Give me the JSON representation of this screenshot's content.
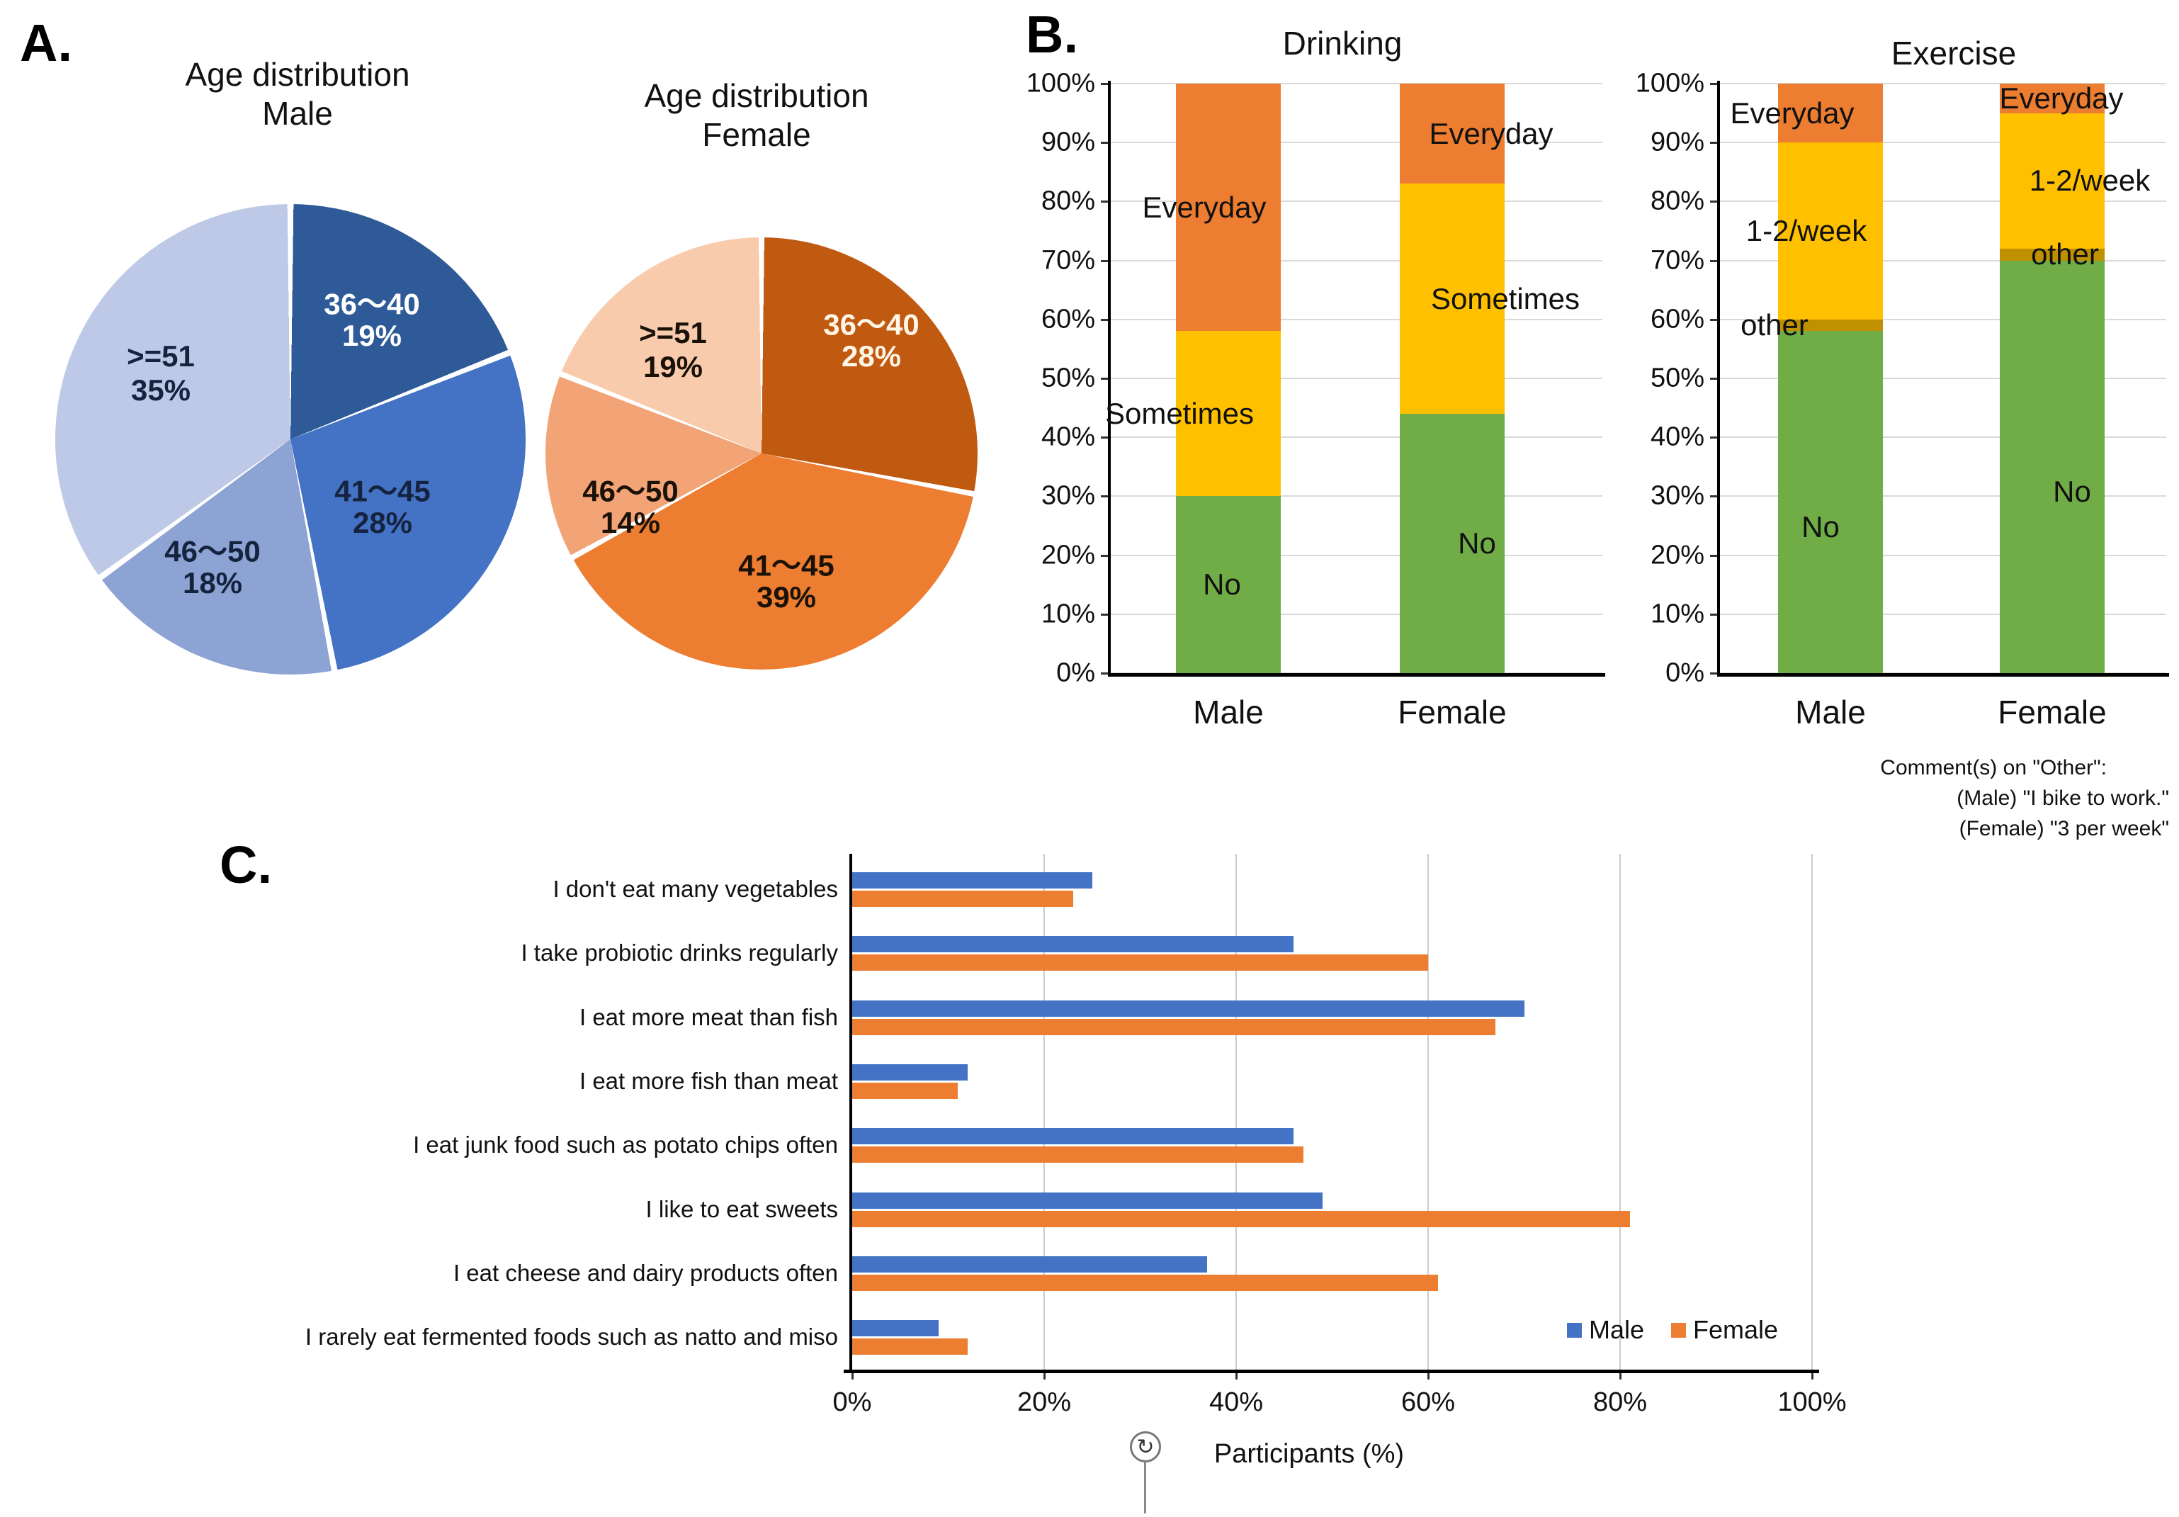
{
  "panels": {
    "a_label": "A.",
    "b_label": "B.",
    "c_label": "C."
  },
  "accent_colors": {
    "male_series_blue": "#4472C4",
    "female_series_orange": "#ED7D31",
    "green_no": "#70AD47",
    "yellow_sometimes": "#FFC000",
    "olive_other": "#BF9000",
    "orange_everyday": "#ED7D31"
  },
  "chart_data": [
    {
      "id": "age_male",
      "type": "pie",
      "title": "Age distribution Male",
      "title_line1": "Age distribution",
      "title_line2": "Male",
      "labels": [
        "36〜40",
        "41〜45",
        "46〜50",
        ">=51"
      ],
      "values": [
        19,
        28,
        18,
        35
      ],
      "pct_labels": [
        "19%",
        "28%",
        "18%",
        "35%"
      ],
      "colors": [
        "#2E5A97",
        "#4472C4",
        "#8DA3D3",
        "#BDC9E6"
      ],
      "text_colors": [
        "#FFFFFF",
        "#15233F",
        "#15233F",
        "#15233F"
      ],
      "start_angle": "top",
      "direction": "clockwise"
    },
    {
      "id": "age_female",
      "type": "pie",
      "title": "Age distribution Female",
      "title_line1": "Age distribution",
      "title_line2": "Female",
      "labels": [
        "36〜40",
        "41〜45",
        "46〜50",
        ">=51"
      ],
      "values": [
        28,
        39,
        14,
        19
      ],
      "pct_labels": [
        "28%",
        "39%",
        "14%",
        "19%"
      ],
      "colors": [
        "#C05A11",
        "#ED7D31",
        "#F2A477",
        "#F8CBAD"
      ],
      "text_colors": [
        "#FFF6E8",
        "#1A1208",
        "#1A1208",
        "#1A1208"
      ],
      "start_angle": "top",
      "direction": "clockwise"
    },
    {
      "id": "drinking",
      "type": "bar",
      "subtype": "stacked_100",
      "title": "Drinking",
      "categories": [
        "Male",
        "Female"
      ],
      "series": [
        {
          "name": "No",
          "color": "#70AD47",
          "values": [
            30,
            44
          ]
        },
        {
          "name": "Sometimes",
          "color": "#FFC000",
          "values": [
            28,
            39
          ]
        },
        {
          "name": "Everyday",
          "color": "#ED7D31",
          "values": [
            42,
            17
          ]
        }
      ],
      "ylim": [
        0,
        100
      ],
      "y_ticks": [
        "0%",
        "10%",
        "20%",
        "30%",
        "40%",
        "50%",
        "60%",
        "70%",
        "80%",
        "90%",
        "100%"
      ],
      "grid": true
    },
    {
      "id": "exercise",
      "type": "bar",
      "subtype": "stacked_100",
      "title": "Exercise",
      "categories": [
        "Male",
        "Female"
      ],
      "series": [
        {
          "name": "No",
          "color": "#70AD47",
          "values": [
            58,
            70
          ]
        },
        {
          "name": "other",
          "color": "#BF9000",
          "values": [
            2,
            2
          ]
        },
        {
          "name": "1-2/week",
          "color": "#FFC000",
          "values": [
            30,
            23
          ]
        },
        {
          "name": "Everyday",
          "color": "#ED7D31",
          "values": [
            10,
            5
          ]
        }
      ],
      "ylim": [
        0,
        100
      ],
      "y_ticks": [
        "0%",
        "10%",
        "20%",
        "30%",
        "40%",
        "50%",
        "60%",
        "70%",
        "80%",
        "90%",
        "100%"
      ],
      "grid": true,
      "comment_lines": [
        "Comment(s) on \"Other\":",
        "(Male) \"I bike to work.\"",
        "(Female) \"3 per week\""
      ]
    },
    {
      "id": "diet_habits",
      "type": "bar",
      "subtype": "grouped_horizontal",
      "title": "",
      "categories": [
        "I don't eat many vegetables",
        "I take probiotic drinks regularly",
        "I eat more meat than fish",
        "I eat more fish than meat",
        "I eat junk food such as potato chips often",
        "I like to eat sweets",
        "I eat cheese and dairy products often",
        "I rarely eat fermented foods such as natto and miso"
      ],
      "series": [
        {
          "name": "Male",
          "color": "#4472C4",
          "values": [
            25,
            46,
            70,
            12,
            46,
            49,
            37,
            9
          ]
        },
        {
          "name": "Female",
          "color": "#ED7D31",
          "values": [
            23,
            60,
            67,
            11,
            47,
            81,
            61,
            12
          ]
        }
      ],
      "xlim": [
        0,
        100
      ],
      "x_ticks": [
        "0%",
        "20%",
        "40%",
        "60%",
        "80%",
        "100%"
      ],
      "xlabel": "Participants (%)",
      "legend_position": "inside-right-bottom",
      "grid": true
    }
  ],
  "icons": {
    "rotate_icon_glyph": "↻"
  }
}
